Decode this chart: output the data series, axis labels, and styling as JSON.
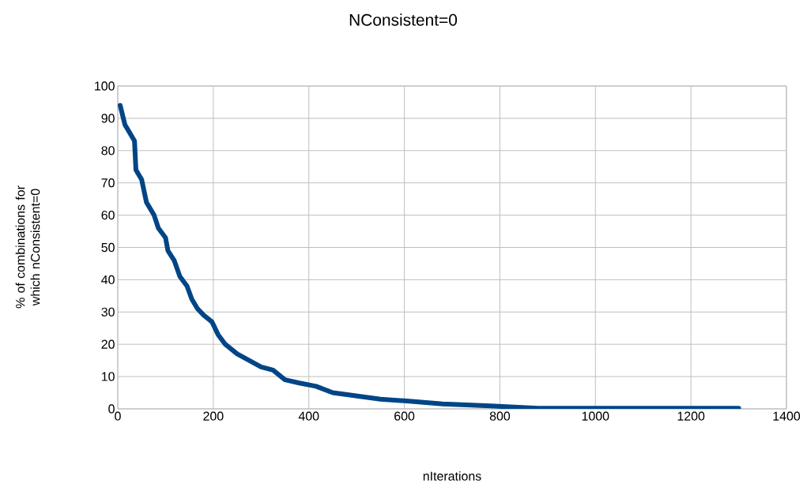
{
  "chart_data": {
    "type": "line",
    "title": "NConsistent=0",
    "xlabel": "nIterations",
    "ylabel": "% of combinations for which nConsistent=0",
    "x": [
      5,
      15,
      35,
      38,
      50,
      60,
      76,
      85,
      100,
      105,
      118,
      130,
      145,
      155,
      167,
      180,
      197,
      210,
      225,
      250,
      275,
      300,
      325,
      350,
      380,
      415,
      450,
      500,
      550,
      610,
      680,
      780,
      880,
      1300
    ],
    "values": [
      94,
      88,
      83,
      74,
      71,
      64,
      60,
      56,
      53,
      49,
      46,
      41,
      38,
      34,
      31,
      29,
      27,
      23,
      20,
      17,
      15,
      13,
      12,
      9,
      8,
      7,
      5,
      4,
      3,
      2.4,
      1.5,
      0.9,
      0.2,
      0.2
    ],
    "color": "#004586",
    "xlim": [
      0,
      1400
    ],
    "ylim": [
      0,
      100
    ],
    "xticks": [
      0,
      200,
      400,
      600,
      800,
      1000,
      1200,
      1400
    ],
    "yticks": [
      0,
      10,
      20,
      30,
      40,
      50,
      60,
      70,
      80,
      90,
      100
    ],
    "grid": true,
    "marker": "none",
    "line_style": "solid"
  }
}
